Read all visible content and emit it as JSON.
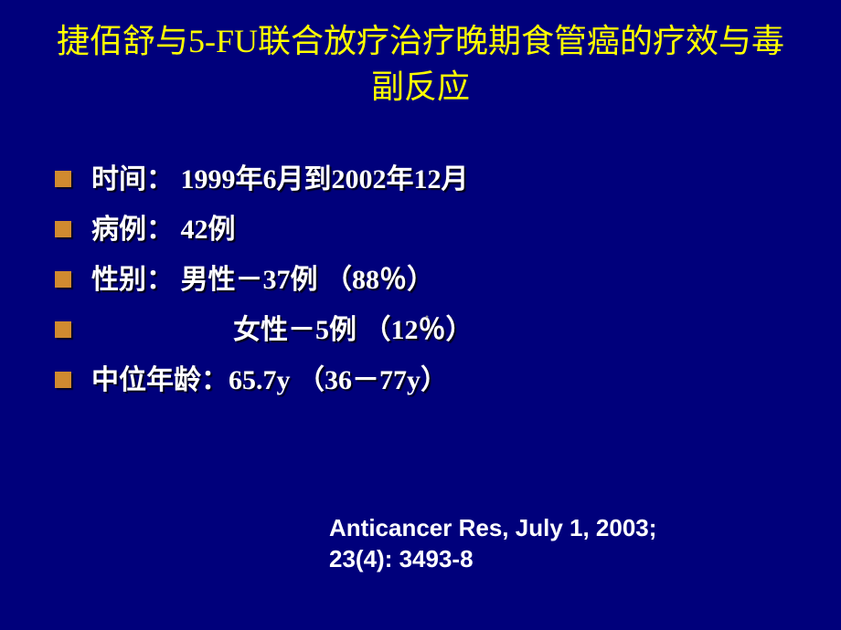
{
  "colors": {
    "background": "#00007b",
    "title_color": "#ffff00",
    "body_text_color": "#ffffff",
    "bullet_color": "#d08a30",
    "text_shadow": "rgba(0,0,0,0.8)"
  },
  "typography": {
    "title_fontsize": 36,
    "body_fontsize": 30,
    "citation_fontsize": 26,
    "title_family": "SimHei",
    "body_family": "SimSun",
    "citation_family": "Arial",
    "bullet_size": 18
  },
  "slide": {
    "title": "捷佰舒与5-FU联合放疗治疗晚期食管癌的疗效与毒副反应",
    "bullets": [
      "时间： 1999年6月到2002年12月",
      "病例： 42例",
      "性别： 男性－37例  （88％）",
      "女性－5例   （12％）",
      "中位年龄：65.7y （36－77y）"
    ],
    "bullet_indent_label_width": 155,
    "citation_line1": "Anticancer Res, July 1, 2003;",
    "citation_line2": "23(4): 3493-8"
  }
}
